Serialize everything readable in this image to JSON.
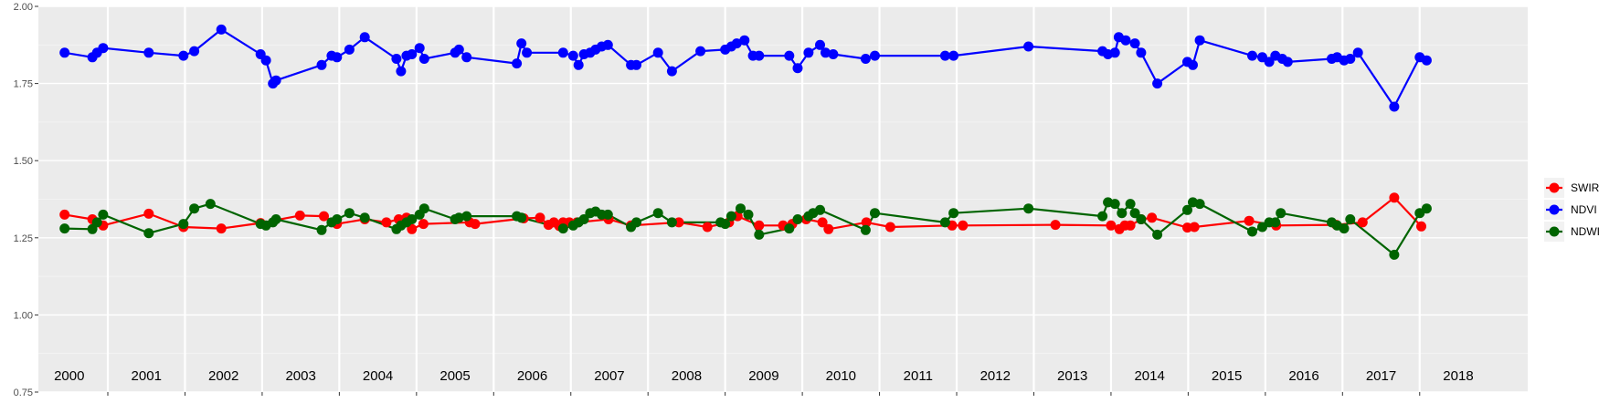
{
  "chart_data": {
    "type": "line",
    "title": "",
    "xlabel": "",
    "ylabel": "",
    "xlim": [
      1999.6,
      2018.9
    ],
    "ylim": [
      0.75,
      2.0
    ],
    "y_ticks": [
      0.75,
      1.0,
      1.25,
      1.5,
      1.75,
      2.0
    ],
    "y_tick_labels": [
      "0.75",
      "1.00",
      "1.25",
      "1.50",
      "1.75",
      "2.00"
    ],
    "year_separators": [
      2000.5,
      2001.5,
      2002.5,
      2003.5,
      2004.5,
      2005.5,
      2006.5,
      2007.5,
      2008.5,
      2009.5,
      2010.5,
      2011.5,
      2012.5,
      2013.5,
      2014.5,
      2015.5,
      2016.5,
      2017.5
    ],
    "year_labels": [
      {
        "x": 2000,
        "label": "2000"
      },
      {
        "x": 2001,
        "label": "2001"
      },
      {
        "x": 2002,
        "label": "2002"
      },
      {
        "x": 2003,
        "label": "2003"
      },
      {
        "x": 2004,
        "label": "2004"
      },
      {
        "x": 2005,
        "label": "2005"
      },
      {
        "x": 2006,
        "label": "2006"
      },
      {
        "x": 2007,
        "label": "2007"
      },
      {
        "x": 2008,
        "label": "2008"
      },
      {
        "x": 2009,
        "label": "2009"
      },
      {
        "x": 2010,
        "label": "2010"
      },
      {
        "x": 2011,
        "label": "2011"
      },
      {
        "x": 2012,
        "label": "2012"
      },
      {
        "x": 2013,
        "label": "2013"
      },
      {
        "x": 2014,
        "label": "2014"
      },
      {
        "x": 2015,
        "label": "2015"
      },
      {
        "x": 2016,
        "label": "2016"
      },
      {
        "x": 2017,
        "label": "2017"
      },
      {
        "x": 2018,
        "label": "2018"
      }
    ],
    "legend_position": "right",
    "grid": true,
    "series": [
      {
        "name": "SWIR",
        "color": "#ff0000",
        "x": [
          1999.94,
          2000.3,
          2000.44,
          2001.03,
          2001.48,
          2001.97,
          2002.48,
          2002.99,
          2003.3,
          2003.47,
          2003.83,
          2004.11,
          2004.27,
          2004.37,
          2004.44,
          2004.59,
          2005.19,
          2005.26,
          2005.89,
          2006.1,
          2006.21,
          2006.28,
          2006.35,
          2006.4,
          2006.48,
          2006.58,
          2006.99,
          2007.28,
          2007.9,
          2008.27,
          2008.55,
          2008.66,
          2008.94,
          2009.25,
          2009.37,
          2009.55,
          2009.76,
          2009.84,
          2010.33,
          2010.64,
          2011.44,
          2011.58,
          2012.78,
          2013.5,
          2013.61,
          2013.68,
          2013.75,
          2013.89,
          2014.03,
          2014.49,
          2014.58,
          2015.29,
          2015.64,
          2016.42,
          2016.76,
          2017.17,
          2017.52
        ],
        "y": [
          1.325,
          1.31,
          1.29,
          1.328,
          1.285,
          1.28,
          1.298,
          1.322,
          1.32,
          1.295,
          1.31,
          1.3,
          1.31,
          1.315,
          1.278,
          1.295,
          1.3,
          1.295,
          1.313,
          1.315,
          1.292,
          1.3,
          1.288,
          1.3,
          1.3,
          1.3,
          1.31,
          1.29,
          1.3,
          1.285,
          1.3,
          1.32,
          1.29,
          1.29,
          1.295,
          1.31,
          1.3,
          1.278,
          1.3,
          1.285,
          1.29,
          1.29,
          1.292,
          1.29,
          1.278,
          1.29,
          1.29,
          1.31,
          1.315,
          1.283,
          1.285,
          1.305,
          1.29,
          1.292,
          1.3,
          1.38,
          1.287
        ]
      },
      {
        "name": "NDVI",
        "color": "#0000ff",
        "x": [
          1999.94,
          2000.3,
          2000.36,
          2000.44,
          2001.03,
          2001.48,
          2001.62,
          2001.97,
          2002.48,
          2002.55,
          2002.64,
          2002.68,
          2003.27,
          2003.4,
          2003.47,
          2003.63,
          2003.83,
          2004.24,
          2004.3,
          2004.37,
          2004.44,
          2004.54,
          2004.6,
          2005.0,
          2005.05,
          2005.15,
          2005.8,
          2005.86,
          2005.93,
          2006.4,
          2006.53,
          2006.6,
          2006.67,
          2006.75,
          2006.82,
          2006.9,
          2006.98,
          2007.28,
          2007.35,
          2007.63,
          2007.81,
          2008.18,
          2008.5,
          2008.58,
          2008.65,
          2008.75,
          2008.86,
          2008.94,
          2009.33,
          2009.44,
          2009.58,
          2009.73,
          2009.8,
          2009.9,
          2010.32,
          2010.44,
          2011.35,
          2011.46,
          2012.43,
          2013.39,
          2013.46,
          2013.55,
          2013.6,
          2013.69,
          2013.81,
          2013.89,
          2014.1,
          2014.49,
          2014.56,
          2014.65,
          2015.33,
          2015.46,
          2015.55,
          2015.63,
          2015.72,
          2015.79,
          2016.36,
          2016.43,
          2016.52,
          2016.6,
          2016.7,
          2017.17,
          2017.5,
          2017.59
        ],
        "y": [
          1.85,
          1.835,
          1.85,
          1.865,
          1.85,
          1.84,
          1.855,
          1.925,
          1.845,
          1.825,
          1.75,
          1.76,
          1.81,
          1.84,
          1.835,
          1.86,
          1.9,
          1.83,
          1.79,
          1.84,
          1.845,
          1.865,
          1.83,
          1.85,
          1.86,
          1.835,
          1.815,
          1.88,
          1.85,
          1.85,
          1.84,
          1.81,
          1.845,
          1.85,
          1.86,
          1.87,
          1.875,
          1.81,
          1.81,
          1.85,
          1.79,
          1.855,
          1.86,
          1.87,
          1.88,
          1.89,
          1.84,
          1.84,
          1.84,
          1.8,
          1.85,
          1.875,
          1.85,
          1.845,
          1.83,
          1.84,
          1.84,
          1.84,
          1.87,
          1.855,
          1.845,
          1.85,
          1.9,
          1.89,
          1.88,
          1.85,
          1.75,
          1.82,
          1.81,
          1.89,
          1.84,
          1.835,
          1.82,
          1.84,
          1.83,
          1.82,
          1.83,
          1.835,
          1.825,
          1.83,
          1.85,
          1.675,
          1.835,
          1.825
        ]
      },
      {
        "name": "NDWI",
        "color": "#006400",
        "x": [
          1999.94,
          2000.3,
          2000.36,
          2000.44,
          2001.03,
          2001.48,
          2001.62,
          2001.83,
          2002.48,
          2002.55,
          2002.64,
          2002.68,
          2003.27,
          2003.4,
          2003.47,
          2003.63,
          2003.83,
          2004.24,
          2004.3,
          2004.37,
          2004.44,
          2004.54,
          2004.6,
          2005.0,
          2005.05,
          2005.15,
          2005.8,
          2005.86,
          2006.4,
          2006.53,
          2006.6,
          2006.67,
          2006.75,
          2006.82,
          2006.9,
          2006.98,
          2007.28,
          2007.35,
          2007.63,
          2007.81,
          2008.44,
          2008.5,
          2008.58,
          2008.7,
          2008.8,
          2008.94,
          2009.33,
          2009.44,
          2009.58,
          2009.64,
          2009.73,
          2010.32,
          2010.44,
          2011.35,
          2011.46,
          2012.43,
          2013.39,
          2013.46,
          2013.55,
          2013.64,
          2013.75,
          2013.81,
          2013.89,
          2014.1,
          2014.49,
          2014.56,
          2014.65,
          2015.33,
          2015.46,
          2015.55,
          2015.63,
          2015.7,
          2016.36,
          2016.43,
          2016.52,
          2016.6,
          2017.17,
          2017.5,
          2017.59
        ],
        "y": [
          1.28,
          1.278,
          1.3,
          1.325,
          1.265,
          1.295,
          1.345,
          1.36,
          1.295,
          1.29,
          1.3,
          1.31,
          1.275,
          1.3,
          1.31,
          1.33,
          1.315,
          1.278,
          1.29,
          1.3,
          1.31,
          1.325,
          1.345,
          1.31,
          1.315,
          1.32,
          1.32,
          1.315,
          1.28,
          1.29,
          1.3,
          1.31,
          1.33,
          1.335,
          1.325,
          1.325,
          1.285,
          1.3,
          1.33,
          1.3,
          1.3,
          1.295,
          1.32,
          1.345,
          1.325,
          1.26,
          1.28,
          1.31,
          1.32,
          1.33,
          1.34,
          1.275,
          1.33,
          1.3,
          1.33,
          1.345,
          1.32,
          1.365,
          1.36,
          1.33,
          1.36,
          1.33,
          1.31,
          1.26,
          1.34,
          1.365,
          1.36,
          1.27,
          1.285,
          1.3,
          1.3,
          1.33,
          1.3,
          1.29,
          1.28,
          1.31,
          1.195,
          1.33,
          1.345
        ]
      }
    ]
  }
}
